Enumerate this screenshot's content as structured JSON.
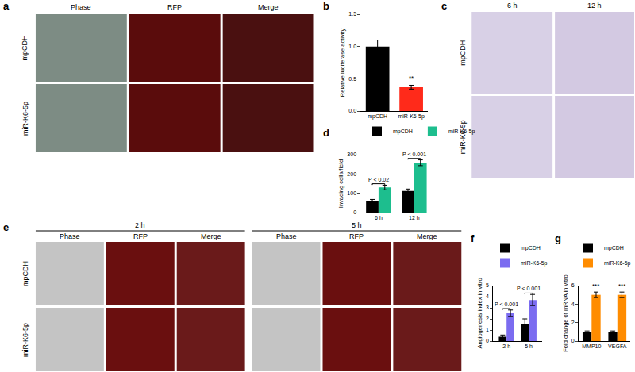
{
  "image_panels": [
    {
      "label": "a",
      "column_titles": [
        "Phase",
        "RFP",
        "Merge"
      ],
      "row_titles": [
        "mpCDH",
        "miR-K6-5p"
      ]
    },
    {
      "label": "c",
      "column_titles": [
        "6 h",
        "12 h"
      ],
      "row_titles": [
        "mpCDH",
        "miR-K6-5p"
      ]
    },
    {
      "label": "e",
      "group_titles": [
        "2 h",
        "5 h"
      ],
      "column_titles": [
        "Phase",
        "RFP",
        "Merge"
      ],
      "row_titles": [
        "mpCDH",
        "miR-K6-5p"
      ]
    }
  ],
  "chart_data": [
    {
      "label": "b",
      "type": "bar",
      "categories": [
        "mpCDH",
        "miR-K6-5p"
      ],
      "values": [
        1.0,
        0.37
      ],
      "errors": [
        0.1,
        0.03
      ],
      "colors": [
        "#000000",
        "#ff2a1a"
      ],
      "y_label": "Relative luciferase activity",
      "ylim": [
        0,
        1.5
      ],
      "yticks": [
        {
          "value": 0,
          "label": "0.0"
        },
        0.5,
        {
          "value": 1,
          "label": "1.0"
        },
        1.5
      ],
      "grid": false,
      "significance": [
        {
          "category": "miR-K6-5p",
          "text": "**"
        }
      ]
    },
    {
      "label": "d",
      "type": "bar",
      "categories": [
        "6 h",
        "12 h"
      ],
      "series": [
        {
          "name": "mpCDH",
          "color": "#000000",
          "values": [
            60,
            112
          ],
          "errors": [
            8,
            10
          ]
        },
        {
          "name": "miR-K6-5p",
          "color": "#1dbe8e",
          "values": [
            130,
            258
          ],
          "errors": [
            12,
            15
          ]
        }
      ],
      "y_label": "Invading cells/field",
      "ylim": [
        0,
        300
      ],
      "yticks": [
        0,
        100,
        200,
        300
      ],
      "grid": false,
      "legend": "top left",
      "comparisons": [
        {
          "category": "6 h",
          "text": "P < 0.02"
        },
        {
          "category": "12 h",
          "text": "P < 0.001"
        }
      ]
    },
    {
      "label": "f",
      "type": "bar",
      "categories": [
        "2 h",
        "5 h"
      ],
      "series": [
        {
          "name": "mpCDH",
          "color": "#000000",
          "values": [
            0.4,
            1.5
          ],
          "errors": [
            0.15,
            0.5
          ]
        },
        {
          "name": "miR-K6-5p",
          "color": "#7b6cf0",
          "values": [
            2.5,
            3.7
          ],
          "errors": [
            0.3,
            0.5
          ]
        }
      ],
      "y_label": "Angiogenesis index in vitro",
      "ylim": [
        0,
        5
      ],
      "yticks": [
        0,
        1,
        2,
        3,
        4,
        5
      ],
      "grid": false,
      "legend": "top left",
      "comparisons": [
        {
          "category": "2 h",
          "text": "P < 0.001"
        },
        {
          "category": "5 h",
          "text": "P < 0.001"
        }
      ]
    },
    {
      "label": "g",
      "type": "bar",
      "categories": [
        "MMP10",
        "VEGFA"
      ],
      "series": [
        {
          "name": "mpCDH",
          "color": "#000000",
          "values": [
            1,
            1
          ],
          "errors": [
            0.1,
            0.1
          ]
        },
        {
          "name": "miR-K6-5p",
          "color": "#ff8c00",
          "values": [
            5,
            5
          ],
          "errors": [
            0.3,
            0.3
          ]
        }
      ],
      "y_label": "Fold change of mRNA in vitro",
      "ylim": [
        0,
        6
      ],
      "yticks": [
        0,
        2,
        4,
        6
      ],
      "grid": false,
      "legend": "top left",
      "significance": [
        {
          "category": "MMP10",
          "text": "***"
        },
        {
          "category": "VEGFA",
          "text": "***"
        }
      ]
    }
  ]
}
